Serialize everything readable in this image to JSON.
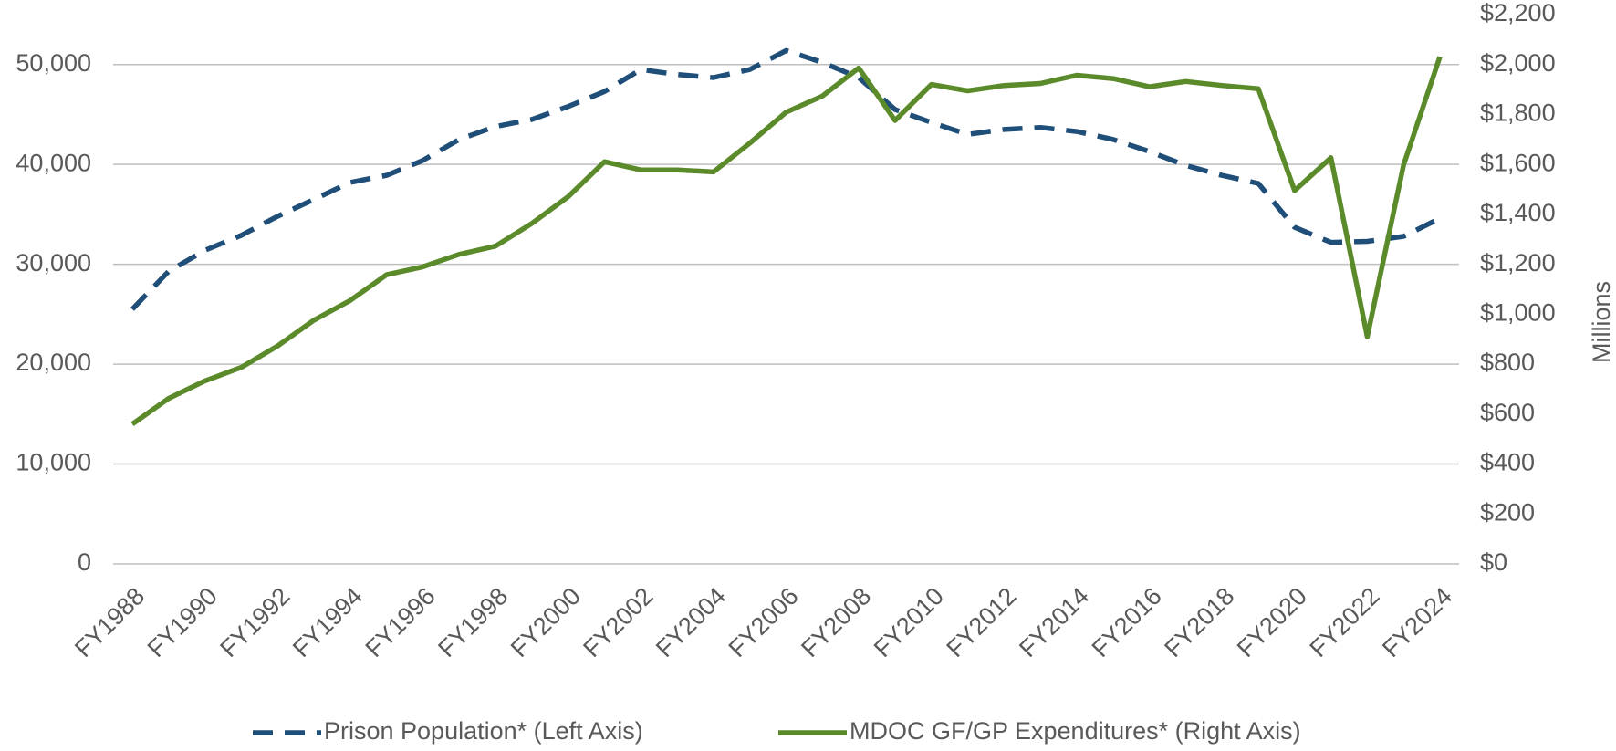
{
  "chart_data": {
    "type": "line",
    "categories": [
      "FY1988",
      null,
      "FY1990",
      null,
      "FY1992",
      null,
      "FY1994",
      null,
      "FY1996",
      null,
      "FY1998",
      null,
      "FY2000",
      null,
      "FY2002",
      null,
      "FY2004",
      null,
      "FY2006",
      null,
      "FY2008",
      null,
      "FY2010",
      null,
      "FY2012",
      null,
      "FY2014",
      null,
      "FY2016",
      null,
      "FY2018",
      null,
      "FY2020",
      null,
      "FY2022",
      null,
      "FY2024"
    ],
    "series": [
      {
        "name": "Prison Population* (Left Axis)",
        "color": "#1f4e79",
        "dash": true,
        "values": [
          25500,
          29300,
          31400,
          32900,
          34800,
          36500,
          38200,
          38900,
          40400,
          42500,
          43800,
          44500,
          45800,
          47300,
          49500,
          49000,
          48700,
          49500,
          51400,
          50200,
          48700,
          45500,
          44200,
          43000,
          43500,
          43700,
          43300,
          42500,
          41300,
          39900,
          38900,
          38100,
          33700,
          32200,
          32300,
          32800,
          34600
        ]
      },
      {
        "name": "MDOC GF/GP Expenditures* (Right Axis)",
        "color": "#5b8a2a",
        "axis": "y2",
        "values": [
          560,
          663,
          733,
          787,
          873,
          976,
          1055,
          1158,
          1190,
          1240,
          1273,
          1364,
          1471,
          1611,
          1578,
          1578,
          1570,
          1685,
          1809,
          1874,
          1986,
          1776,
          1920,
          1895,
          1916,
          1924,
          1957,
          1944,
          1911,
          1932,
          1916,
          1903,
          1495,
          1627,
          910,
          1598,
          2031
        ]
      }
    ],
    "ylim": [
      0,
      55000
    ],
    "yticks": [
      0,
      {
        "value": 10000,
        "label": "10,000"
      },
      {
        "value": 20000,
        "label": "20,000"
      },
      {
        "value": 30000,
        "label": "30,000"
      },
      {
        "value": 40000,
        "label": "40,000"
      },
      {
        "value": 50000,
        "label": "50,000"
      }
    ],
    "y2lim": [
      0,
      2200
    ],
    "y2ticks": [
      {
        "value": 0,
        "label": "$0"
      },
      {
        "value": 200,
        "label": "$200"
      },
      {
        "value": 400,
        "label": "$400"
      },
      {
        "value": 600,
        "label": "$600"
      },
      {
        "value": 800,
        "label": "$800"
      },
      {
        "value": 1000,
        "label": "$1,000"
      },
      {
        "value": 1200,
        "label": "$1,200"
      },
      {
        "value": 1400,
        "label": "$1,400"
      },
      {
        "value": 1600,
        "label": "$1,600"
      },
      {
        "value": 1800,
        "label": "$1,800"
      },
      {
        "value": 2000,
        "label": "$2,000"
      },
      {
        "value": 2200,
        "label": "$2,200"
      }
    ],
    "y2label": "Millions",
    "grid": true,
    "legend": "bottom"
  }
}
